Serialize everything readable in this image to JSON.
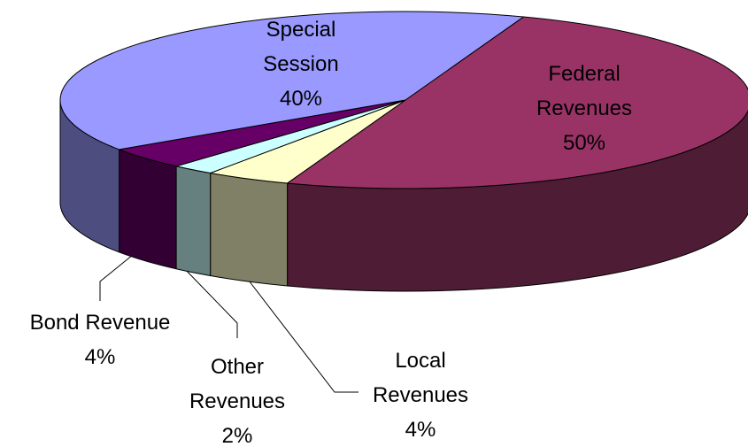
{
  "chart_data": {
    "type": "pie3d",
    "categories": [
      "Federal Revenues",
      "Local Revenues",
      "Other Revenues",
      "Bond Revenue",
      "Special Session"
    ],
    "values": [
      50,
      4,
      2,
      4,
      40
    ],
    "value_labels": [
      "50%",
      "4%",
      "2%",
      "4%",
      "40%"
    ],
    "colors": [
      "#993366",
      "#ffffcc",
      "#ccffff",
      "#660066",
      "#9999ff"
    ],
    "side_colors": [
      "#4f1c35",
      "#808066",
      "#668080",
      "#330033",
      "#4d4d80"
    ]
  }
}
